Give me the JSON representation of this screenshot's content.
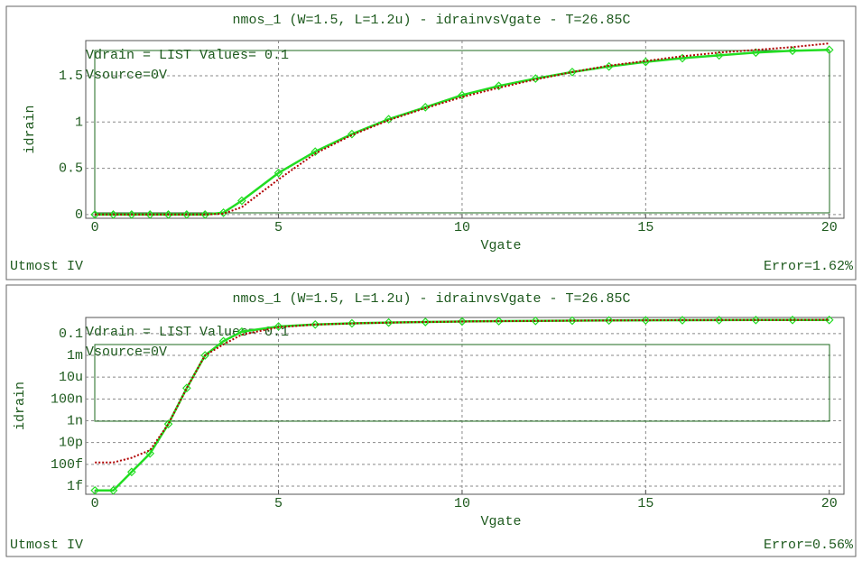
{
  "chart_data": [
    {
      "type": "line",
      "title": "nmos_1 (W=1.5, L=1.2u) - idrainvsVgate - T=26.85C",
      "x_label": "Vgate",
      "y_label": "idrain",
      "annotations": [
        "Vdrain = LIST Values= 0.1",
        "Vsource=0V"
      ],
      "footer_left": "Utmost IV",
      "footer_right": "Error=1.62%",
      "x": [
        0,
        0.5,
        1,
        1.5,
        2,
        2.5,
        3,
        3.5,
        4,
        5,
        6,
        7,
        8,
        9,
        10,
        11,
        12,
        13,
        14,
        15,
        16,
        17,
        18,
        19,
        20
      ],
      "series": [
        {
          "color": "#22dd22",
          "marker": "diamond",
          "values": [
            0,
            0,
            0,
            0,
            0,
            0,
            0,
            0.02,
            0.15,
            0.45,
            0.68,
            0.87,
            1.03,
            1.16,
            1.29,
            1.39,
            1.47,
            1.54,
            1.6,
            1.65,
            1.69,
            1.72,
            1.75,
            1.77,
            1.78
          ]
        },
        {
          "color": "#b00000",
          "dotted": true,
          "values": [
            0,
            0,
            0,
            0,
            0,
            0,
            0,
            0.01,
            0.08,
            0.38,
            0.66,
            0.86,
            1.02,
            1.15,
            1.27,
            1.37,
            1.46,
            1.54,
            1.61,
            1.66,
            1.71,
            1.75,
            1.78,
            1.81,
            1.85
          ]
        }
      ],
      "xlim": [
        -0.25,
        20.4
      ],
      "xticks": [
        0,
        5,
        10,
        15,
        20
      ],
      "ylim": [
        -0.04,
        1.88
      ],
      "yticks": [
        0,
        0.5,
        1,
        1.5
      ],
      "grid": true,
      "log_y": false
    },
    {
      "type": "line",
      "title": "nmos_1 (W=1.5, L=1.2u) - idrainvsVgate - T=26.85C",
      "x_label": "Vgate",
      "y_label": "idrain",
      "annotations": [
        "Vdrain = LIST Values= 0.1",
        "Vsource=0V"
      ],
      "footer_left": "Utmost IV",
      "footer_right": "Error=0.56%",
      "x": [
        0,
        0.5,
        1,
        1.5,
        2,
        2.5,
        3,
        3.5,
        4,
        5,
        6,
        7,
        8,
        9,
        10,
        11,
        12,
        13,
        14,
        15,
        16,
        17,
        18,
        19,
        20
      ],
      "series": [
        {
          "color": "#22dd22",
          "marker": "diamond",
          "values": [
            4e-16,
            4e-16,
            2e-14,
            1e-12,
            5e-10,
            1e-06,
            0.001,
            0.02,
            0.15,
            0.45,
            0.68,
            0.87,
            1.03,
            1.16,
            1.29,
            1.39,
            1.47,
            1.54,
            1.6,
            1.65,
            1.69,
            1.72,
            1.75,
            1.77,
            1.78
          ]
        },
        {
          "color": "#b00000",
          "dotted": true,
          "values": [
            1.5e-13,
            1.5e-13,
            4e-13,
            2e-12,
            5e-10,
            1e-06,
            0.001,
            0.01,
            0.08,
            0.38,
            0.66,
            0.86,
            1.02,
            1.15,
            1.27,
            1.37,
            1.46,
            1.54,
            1.61,
            1.66,
            1.71,
            1.75,
            1.78,
            1.81,
            1.85
          ]
        }
      ],
      "xlim": [
        -0.25,
        20.4
      ],
      "xticks": [
        0,
        5,
        10,
        15,
        20
      ],
      "ylim": [
        1.8e-16,
        3
      ],
      "yticks": [
        {
          "value": 1e-15,
          "label": "1f"
        },
        {
          "value": 1e-13,
          "label": "100f"
        },
        {
          "value": 1e-11,
          "label": "10p"
        },
        {
          "value": 1e-09,
          "label": "1n"
        },
        {
          "value": 1e-07,
          "label": "100n"
        },
        {
          "value": 1e-05,
          "label": "10u"
        },
        {
          "value": 0.001,
          "label": "1m"
        },
        0.1
      ],
      "grid": true,
      "log_y": true
    }
  ]
}
